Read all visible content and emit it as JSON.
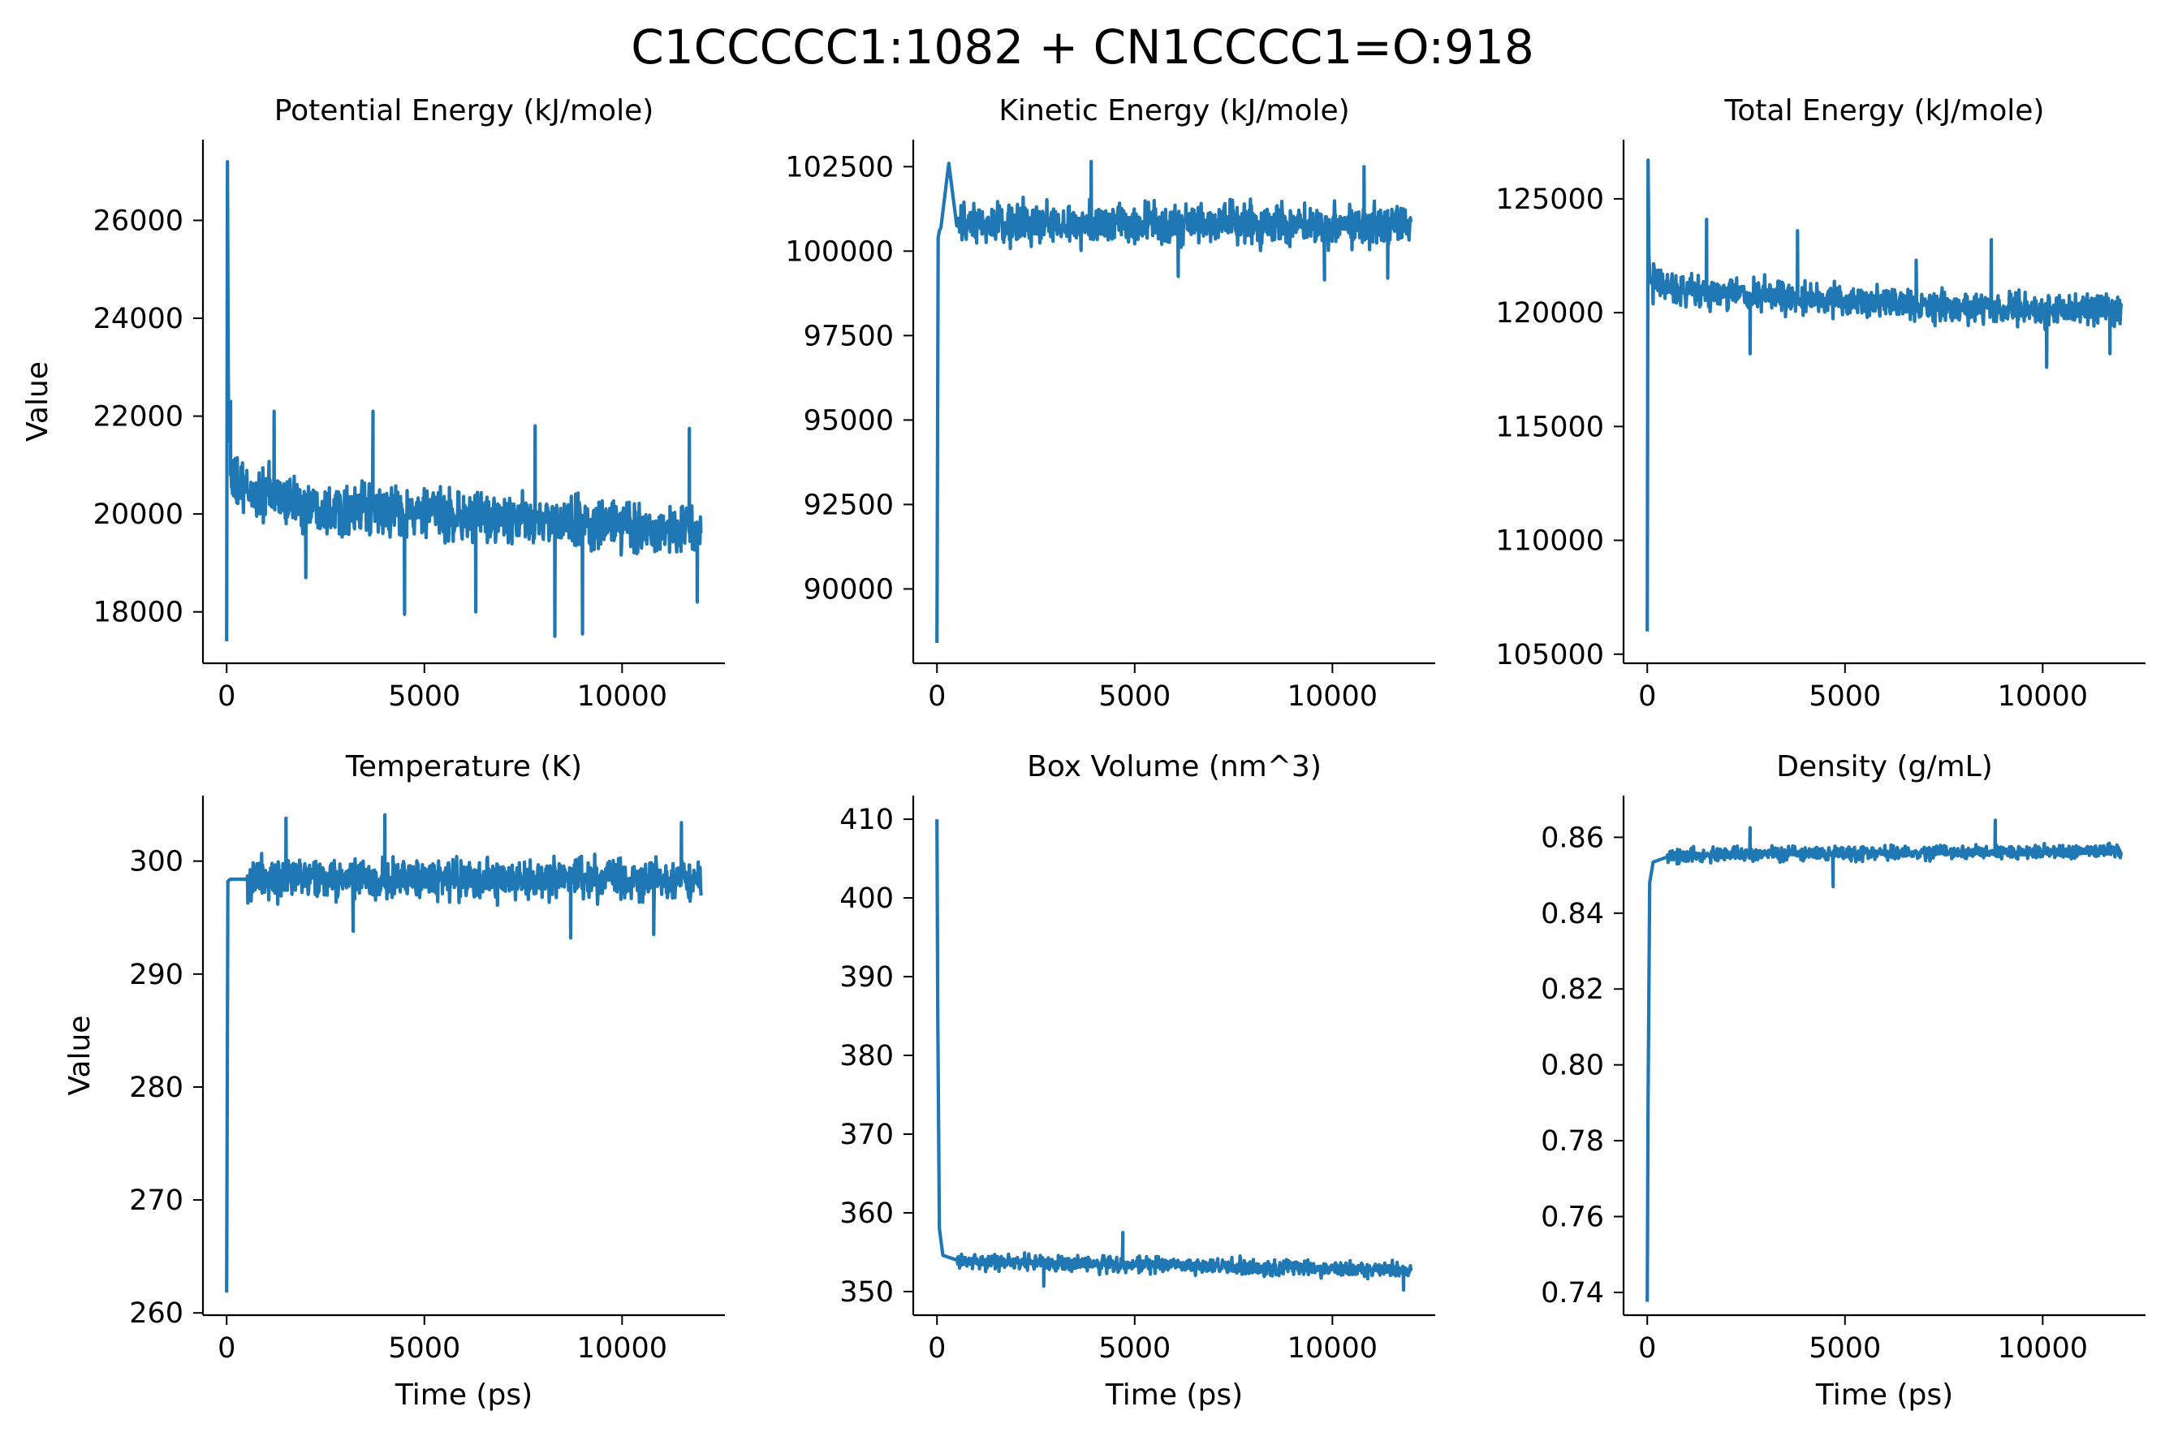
{
  "figure": {
    "title": "C1CCCCC1:1082 + CN1CCCC1=O:918",
    "line_color": "#1f77b4"
  },
  "chart_data": [
    {
      "type": "line",
      "title": "Potential Energy (kJ/mole)",
      "xlabel": "",
      "ylabel": "Value",
      "xlim": [
        -600,
        12600
      ],
      "ylim": [
        16950,
        27650
      ],
      "xticks": [
        0,
        5000,
        10000
      ],
      "yticks": [
        18000,
        20000,
        22000,
        24000,
        26000
      ],
      "ytick_labels": [
        "18000",
        "20000",
        "22000",
        "24000",
        "26000"
      ],
      "series": [
        {
          "x": [
            0,
            20,
            40,
            60,
            100,
            200,
            500,
            1000,
            2000,
            3000,
            4000,
            5000,
            6000,
            7000,
            8000,
            9000,
            10000,
            11000,
            12000
          ],
          "y": [
            17400,
            27200,
            22800,
            21500,
            20800,
            20600,
            20450,
            20400,
            20200,
            20100,
            20050,
            20000,
            19950,
            19900,
            19850,
            19800,
            19750,
            19700,
            19650
          ],
          "band": [
            900,
            900,
            900,
            900,
            850,
            850,
            800,
            800,
            750,
            750,
            750,
            750,
            750,
            750,
            750,
            750,
            750,
            750,
            700
          ],
          "spikes": [
            [
              100,
              22300
            ],
            [
              1200,
              22100
            ],
            [
              2000,
              18700
            ],
            [
              3700,
              22100
            ],
            [
              4500,
              17950
            ],
            [
              6300,
              18000
            ],
            [
              7800,
              21800
            ],
            [
              8300,
              17500
            ],
            [
              9000,
              17550
            ],
            [
              11700,
              21750
            ],
            [
              11900,
              18200
            ]
          ]
        }
      ]
    },
    {
      "type": "line",
      "title": "Kinetic Energy (kJ/mole)",
      "xlabel": "",
      "ylabel": "",
      "xlim": [
        -600,
        12600
      ],
      "ylim": [
        87800,
        103300
      ],
      "xticks": [
        0,
        5000,
        10000
      ],
      "yticks": [
        90000,
        92500,
        95000,
        97500,
        100000,
        102500
      ],
      "ytick_labels": [
        "90000",
        "92500",
        "95000",
        "97500",
        "100000",
        "102500"
      ],
      "series": [
        {
          "x": [
            0,
            30,
            60,
            100,
            500,
            1000,
            2000,
            3000,
            4000,
            5000,
            6000,
            7000,
            8000,
            9000,
            10000,
            11000,
            12000
          ],
          "y": [
            88400,
            100400,
            100600,
            100700,
            100750,
            100750,
            100800,
            100800,
            100800,
            100800,
            100800,
            100800,
            100800,
            100800,
            100800,
            100800,
            100800
          ],
          "band": [
            0,
            900,
            900,
            900,
            900,
            900,
            900,
            900,
            900,
            900,
            900,
            900,
            900,
            900,
            900,
            900,
            900
          ],
          "spikes": [
            [
              300,
              102600
            ],
            [
              3900,
              102650
            ],
            [
              10800,
              102500
            ],
            [
              6100,
              99250
            ],
            [
              9800,
              99150
            ],
            [
              11400,
              99200
            ]
          ]
        }
      ]
    },
    {
      "type": "line",
      "title": "Total Energy (kJ/mole)",
      "xlabel": "",
      "ylabel": "",
      "xlim": [
        -600,
        12600
      ],
      "ylim": [
        104600,
        127600
      ],
      "xticks": [
        0,
        5000,
        10000
      ],
      "yticks": [
        105000,
        110000,
        115000,
        120000,
        125000
      ],
      "ytick_labels": [
        "105000",
        "110000",
        "115000",
        "120000",
        "125000"
      ],
      "series": [
        {
          "x": [
            0,
            20,
            40,
            70,
            100,
            500,
            1000,
            2000,
            3000,
            4000,
            5000,
            6000,
            7000,
            8000,
            9000,
            10000,
            11000,
            12000
          ],
          "y": [
            106000,
            126700,
            122500,
            121500,
            121300,
            121200,
            121000,
            120800,
            120700,
            120600,
            120500,
            120400,
            120300,
            120200,
            120200,
            120100,
            120100,
            120100
          ],
          "band": [
            0,
            1100,
            1100,
            1100,
            1100,
            1050,
            1000,
            1000,
            1000,
            1000,
            1000,
            1000,
            1000,
            1000,
            1000,
            1000,
            1000,
            1000
          ],
          "spikes": [
            [
              1500,
              124100
            ],
            [
              3800,
              123600
            ],
            [
              6800,
              122300
            ],
            [
              8700,
              123200
            ],
            [
              2600,
              118200
            ],
            [
              10100,
              117600
            ],
            [
              11700,
              118200
            ]
          ]
        }
      ]
    },
    {
      "type": "line",
      "title": "Temperature (K)",
      "xlabel": "Time (ps)",
      "ylabel": "Value",
      "xlim": [
        -600,
        12600
      ],
      "ylim": [
        259800,
        305800
      ],
      "value_scale": 0.001,
      "xticks": [
        0,
        5000,
        10000
      ],
      "yticks": [
        260000,
        270000,
        280000,
        290000,
        300000
      ],
      "ytick_labels": [
        "260",
        "270",
        "280",
        "290",
        "300"
      ],
      "series": [
        {
          "x": [
            0,
            30,
            60,
            100,
            500,
            1000,
            2000,
            3000,
            4000,
            5000,
            6000,
            7000,
            8000,
            9000,
            10000,
            11000,
            12000
          ],
          "y": [
            261800,
            298200,
            298300,
            298400,
            298400,
            298400,
            298400,
            298400,
            298400,
            298400,
            298400,
            298400,
            298400,
            298400,
            298400,
            298400,
            298400
          ],
          "band": [
            0,
            2600,
            2600,
            2600,
            2600,
            2600,
            2600,
            2600,
            2600,
            2600,
            2600,
            2600,
            2600,
            2600,
            2600,
            2600,
            2600
          ],
          "spikes": [
            [
              1500,
              303800
            ],
            [
              4000,
              304100
            ],
            [
              11500,
              303400
            ],
            [
              3200,
              293800
            ],
            [
              8700,
              293200
            ],
            [
              10800,
              293500
            ]
          ]
        }
      ]
    },
    {
      "type": "line",
      "title": "Box Volume (nm^3)",
      "xlabel": "Time (ps)",
      "ylabel": "",
      "xlim": [
        -600,
        12600
      ],
      "ylim": [
        347000,
        413000
      ],
      "value_scale": 0.001,
      "xticks": [
        0,
        5000,
        10000
      ],
      "yticks": [
        350000,
        360000,
        370000,
        380000,
        390000,
        400000,
        410000
      ],
      "ytick_labels": [
        "350",
        "360",
        "370",
        "380",
        "390",
        "400",
        "410"
      ],
      "series": [
        {
          "x": [
            0,
            20,
            60,
            150,
            500,
            1000,
            2000,
            3000,
            4000,
            5000,
            6000,
            7000,
            8000,
            9000,
            10000,
            11000,
            12000
          ],
          "y": [
            410000,
            385000,
            358000,
            354600,
            354000,
            353800,
            353700,
            353600,
            353500,
            353400,
            353300,
            353200,
            353100,
            353000,
            352900,
            352800,
            352700
          ],
          "band": [
            0,
            0,
            1600,
            1600,
            1600,
            1600,
            1500,
            1500,
            1500,
            1500,
            1500,
            1500,
            1500,
            1500,
            1500,
            1500,
            1500
          ],
          "spikes": [
            [
              4700,
              357500
            ],
            [
              2700,
              350700
            ],
            [
              11800,
              350200
            ]
          ]
        }
      ]
    },
    {
      "type": "line",
      "title": "Density (g/mL)",
      "xlabel": "Time (ps)",
      "ylabel": "",
      "xlim": [
        -600,
        12600
      ],
      "ylim": [
        734,
        871
      ],
      "value_scale": 0.001,
      "xticks": [
        0,
        5000,
        10000
      ],
      "yticks": [
        740,
        760,
        780,
        800,
        820,
        840,
        860
      ],
      "ytick_labels": [
        "0.74",
        "0.76",
        "0.78",
        "0.80",
        "0.82",
        "0.84",
        "0.86"
      ],
      "series": [
        {
          "x": [
            0,
            20,
            60,
            150,
            500,
            1000,
            2000,
            3000,
            4000,
            5000,
            6000,
            7000,
            8000,
            9000,
            10000,
            11000,
            12000
          ],
          "y": [
            737.5,
            790,
            848,
            853.5,
            854.8,
            855.2,
            855.5,
            855.6,
            855.7,
            855.8,
            855.9,
            856.0,
            856.0,
            856.1,
            856.2,
            856.3,
            856.4
          ],
          "band": [
            0,
            0,
            2.7,
            2.7,
            2.7,
            2.7,
            2.6,
            2.6,
            2.6,
            2.6,
            2.6,
            2.6,
            2.6,
            2.6,
            2.6,
            2.6,
            2.6
          ],
          "spikes": [
            [
              4700,
              847
            ],
            [
              8800,
              864.5
            ],
            [
              2600,
              862.5
            ]
          ]
        }
      ]
    }
  ]
}
